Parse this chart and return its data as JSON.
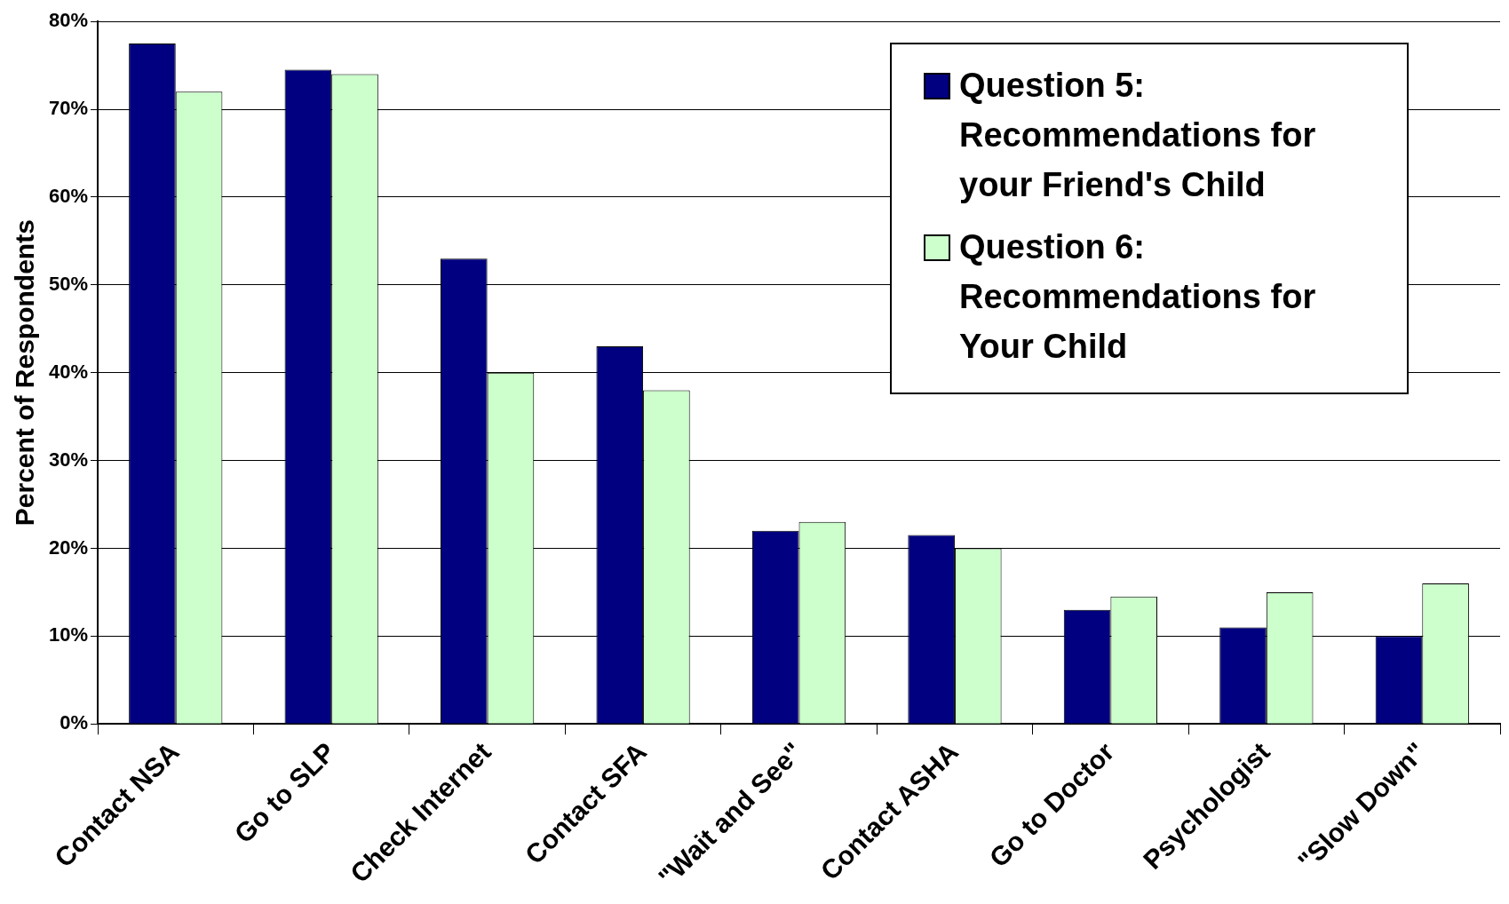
{
  "chart_data": {
    "type": "bar",
    "ylabel": "Percent of Respondents",
    "categories": [
      "Contact NSA",
      "Go to SLP",
      "Check Internet",
      "Contact SFA",
      "\"Wait and See\"",
      "Contact ASHA",
      "Go to Doctor",
      "Psychologist",
      "\"Slow Down\""
    ],
    "series": [
      {
        "name": "Question 5: Recommendations for your Friend's Child",
        "color": "#000080",
        "values": [
          77.5,
          74.5,
          53,
          43,
          22,
          21.5,
          13,
          11,
          10
        ]
      },
      {
        "name": "Question 6: Recommendations for Your Child",
        "color": "#ccffcc",
        "values": [
          72,
          74,
          40,
          38,
          23,
          20,
          14.5,
          15,
          16
        ]
      }
    ],
    "ylim": [
      0,
      80
    ],
    "yticks": [
      {
        "value": 0,
        "label": "0%"
      },
      {
        "value": 10,
        "label": "10%"
      },
      {
        "value": 20,
        "label": "20%"
      },
      {
        "value": 30,
        "label": "30%"
      },
      {
        "value": 40,
        "label": "40%"
      },
      {
        "value": 50,
        "label": "50%"
      },
      {
        "value": 60,
        "label": "60%"
      },
      {
        "value": 70,
        "label": "70%"
      },
      {
        "value": 80,
        "label": "80%"
      }
    ],
    "grid": "y",
    "legend": "top right"
  }
}
